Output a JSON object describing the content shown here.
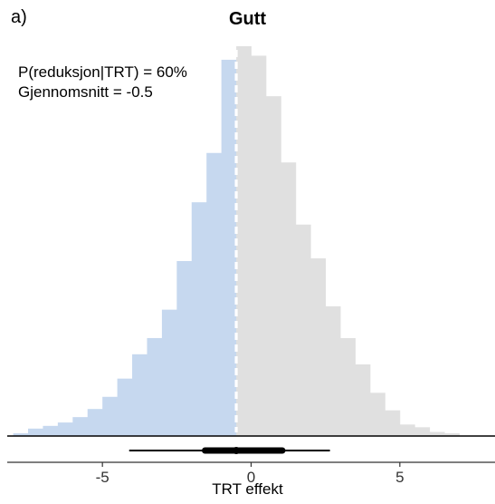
{
  "panel_label": "a)",
  "chart_data": {
    "type": "histogram",
    "title": "Gutt",
    "xlabel": "TRT effekt",
    "ylabel": "",
    "xlim": [
      -8.2,
      8.2
    ],
    "xticks": [
      -5,
      0,
      5
    ],
    "xtick_labels": [
      "-5",
      "0",
      "5"
    ],
    "bin_width": 0.5,
    "bins": [
      {
        "x0": -8.0,
        "x1": -7.5,
        "density": 0.004
      },
      {
        "x0": -7.5,
        "x1": -7.0,
        "density": 0.011
      },
      {
        "x0": -7.0,
        "x1": -6.5,
        "density": 0.015
      },
      {
        "x0": -6.5,
        "x1": -6.0,
        "density": 0.02
      },
      {
        "x0": -6.0,
        "x1": -5.5,
        "density": 0.028
      },
      {
        "x0": -5.5,
        "x1": -5.0,
        "density": 0.04
      },
      {
        "x0": -5.0,
        "x1": -4.5,
        "density": 0.058
      },
      {
        "x0": -4.5,
        "x1": -4.0,
        "density": 0.085
      },
      {
        "x0": -4.0,
        "x1": -3.5,
        "density": 0.121
      },
      {
        "x0": -3.5,
        "x1": -3.0,
        "density": 0.145
      },
      {
        "x0": -3.0,
        "x1": -2.5,
        "density": 0.187
      },
      {
        "x0": -2.5,
        "x1": -2.0,
        "density": 0.259
      },
      {
        "x0": -2.0,
        "x1": -1.5,
        "density": 0.346
      },
      {
        "x0": -1.5,
        "x1": -1.0,
        "density": 0.419
      },
      {
        "x0": -1.0,
        "x1": -0.5,
        "density": 0.557
      },
      {
        "x0": -0.5,
        "x1": 0.0,
        "density": 0.577
      },
      {
        "x0": 0.0,
        "x1": 0.5,
        "density": 0.563
      },
      {
        "x0": 0.5,
        "x1": 1.0,
        "density": 0.503
      },
      {
        "x0": 1.0,
        "x1": 1.5,
        "density": 0.405
      },
      {
        "x0": 1.5,
        "x1": 2.0,
        "density": 0.313
      },
      {
        "x0": 2.0,
        "x1": 2.5,
        "density": 0.263
      },
      {
        "x0": 2.5,
        "x1": 3.0,
        "density": 0.192
      },
      {
        "x0": 3.0,
        "x1": 3.5,
        "density": 0.145
      },
      {
        "x0": 3.5,
        "x1": 4.0,
        "density": 0.106
      },
      {
        "x0": 4.0,
        "x1": 4.5,
        "density": 0.064
      },
      {
        "x0": 4.5,
        "x1": 5.0,
        "density": 0.038
      },
      {
        "x0": 5.0,
        "x1": 5.5,
        "density": 0.017
      },
      {
        "x0": 5.5,
        "x1": 6.0,
        "density": 0.013
      },
      {
        "x0": 6.0,
        "x1": 6.5,
        "density": 0.006
      },
      {
        "x0": 6.5,
        "x1": 7.0,
        "density": 0.004
      }
    ],
    "split_at": -0.5,
    "mean": -0.5,
    "interval_inner": [
      -1.55,
      1.05
    ],
    "interval_outer": [
      -4.1,
      2.65
    ],
    "colors": {
      "below_split": "#c6d8ef",
      "above_split": "#e0e0e0",
      "mean_line": "#ffffff",
      "interval": "#000000"
    },
    "grid": false,
    "annotations": [
      "P(reduksjon|TRT) = 60%",
      "Gjennomsnitt = -0.5"
    ]
  }
}
